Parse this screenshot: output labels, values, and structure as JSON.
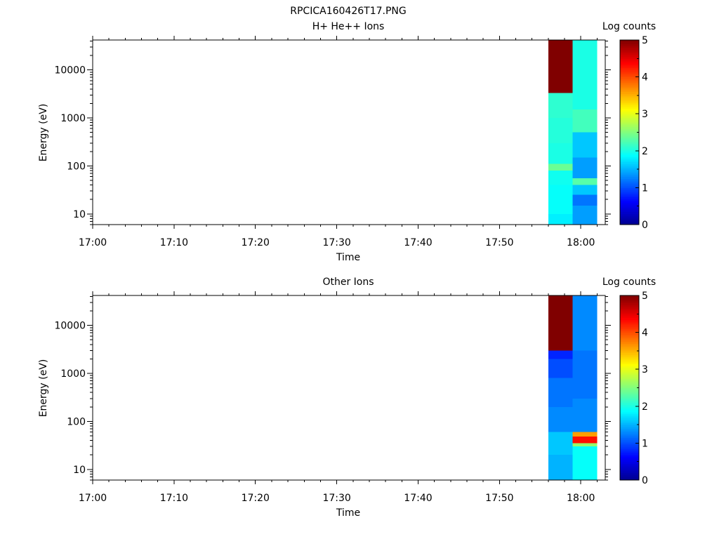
{
  "page_title": "RPCICA160426T17.PNG",
  "colorbar_label": "Log counts",
  "colorbar_ticks": [
    "0",
    "1",
    "2",
    "3",
    "4",
    "5"
  ],
  "colormap": [
    "#00008f",
    "#0000ff",
    "#00ffff",
    "#ffff00",
    "#ff0000",
    "#800000"
  ],
  "chart_data": [
    {
      "type": "heatmap",
      "title": "H+ He++ Ions",
      "xlabel": "Time",
      "ylabel": "Energy (eV)",
      "x_tick_labels": [
        "17:00",
        "17:10",
        "17:20",
        "17:30",
        "17:40",
        "17:50",
        "18:00"
      ],
      "x_range": [
        "17:00",
        "18:03"
      ],
      "y_tick_labels": [
        "10",
        "100",
        "1000",
        "10000"
      ],
      "y_range": [
        6,
        42000
      ],
      "y_scale": "log",
      "z_label": "Log counts",
      "z_range": [
        0,
        5
      ],
      "columns": [
        {
          "time_start": "17:56",
          "time_end": "17:59",
          "bands": [
            {
              "e_min": 6,
              "e_max": 10,
              "log_counts": 1.8
            },
            {
              "e_min": 10,
              "e_max": 20,
              "log_counts": 1.9
            },
            {
              "e_min": 20,
              "e_max": 40,
              "log_counts": 1.9
            },
            {
              "e_min": 40,
              "e_max": 80,
              "log_counts": 1.95
            },
            {
              "e_min": 80,
              "e_max": 110,
              "log_counts": 2.4
            },
            {
              "e_min": 110,
              "e_max": 300,
              "log_counts": 2.0
            },
            {
              "e_min": 300,
              "e_max": 1000,
              "log_counts": 2.05
            },
            {
              "e_min": 1000,
              "e_max": 3300,
              "log_counts": 2.1
            },
            {
              "e_min": 3300,
              "e_max": 42000,
              "log_counts": 5.0
            }
          ]
        },
        {
          "time_start": "17:59",
          "time_end": "18:02",
          "bands": [
            {
              "e_min": 6,
              "e_max": 15,
              "log_counts": 1.4
            },
            {
              "e_min": 15,
              "e_max": 25,
              "log_counts": 1.2
            },
            {
              "e_min": 25,
              "e_max": 40,
              "log_counts": 1.6
            },
            {
              "e_min": 40,
              "e_max": 55,
              "log_counts": 2.3
            },
            {
              "e_min": 55,
              "e_max": 150,
              "log_counts": 1.4
            },
            {
              "e_min": 150,
              "e_max": 500,
              "log_counts": 1.6
            },
            {
              "e_min": 500,
              "e_max": 1500,
              "log_counts": 2.2
            },
            {
              "e_min": 1500,
              "e_max": 42000,
              "log_counts": 2.0
            }
          ]
        }
      ]
    },
    {
      "type": "heatmap",
      "title": "Other Ions",
      "xlabel": "Time",
      "ylabel": "Energy (eV)",
      "x_tick_labels": [
        "17:00",
        "17:10",
        "17:20",
        "17:30",
        "17:40",
        "17:50",
        "18:00"
      ],
      "x_range": [
        "17:00",
        "18:03"
      ],
      "y_tick_labels": [
        "10",
        "100",
        "1000",
        "10000"
      ],
      "y_range": [
        6,
        42000
      ],
      "y_scale": "log",
      "z_label": "Log counts",
      "z_range": [
        0,
        5
      ],
      "columns": [
        {
          "time_start": "17:56",
          "time_end": "17:59",
          "bands": [
            {
              "e_min": 6,
              "e_max": 20,
              "log_counts": 1.5
            },
            {
              "e_min": 20,
              "e_max": 60,
              "log_counts": 1.6
            },
            {
              "e_min": 60,
              "e_max": 200,
              "log_counts": 1.3
            },
            {
              "e_min": 200,
              "e_max": 800,
              "log_counts": 1.2
            },
            {
              "e_min": 800,
              "e_max": 2000,
              "log_counts": 1.0
            },
            {
              "e_min": 2000,
              "e_max": 3000,
              "log_counts": 0.8
            },
            {
              "e_min": 3000,
              "e_max": 42000,
              "log_counts": 5.0
            }
          ]
        },
        {
          "time_start": "17:59",
          "time_end": "18:02",
          "bands": [
            {
              "e_min": 6,
              "e_max": 30,
              "log_counts": 1.9
            },
            {
              "e_min": 30,
              "e_max": 35,
              "log_counts": 2.6
            },
            {
              "e_min": 35,
              "e_max": 48,
              "log_counts": 4.3
            },
            {
              "e_min": 48,
              "e_max": 60,
              "log_counts": 3.6
            },
            {
              "e_min": 60,
              "e_max": 300,
              "log_counts": 1.3
            },
            {
              "e_min": 300,
              "e_max": 3000,
              "log_counts": 1.2
            },
            {
              "e_min": 3000,
              "e_max": 42000,
              "log_counts": 1.3
            }
          ]
        }
      ]
    }
  ]
}
